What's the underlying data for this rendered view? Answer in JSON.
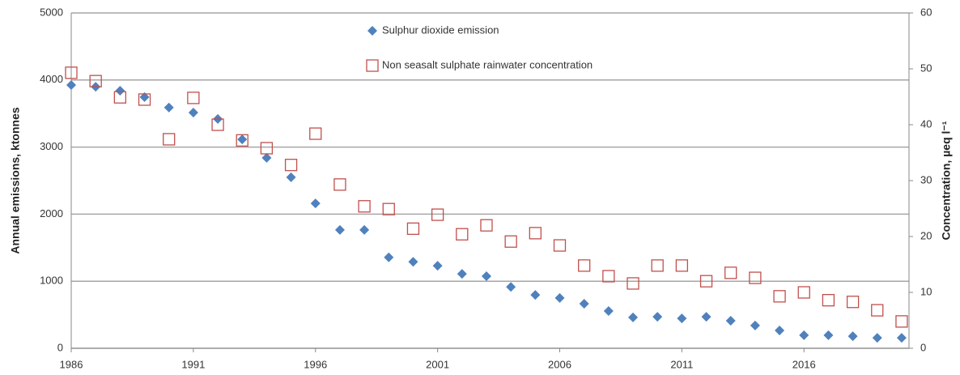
{
  "chart_data": {
    "type": "scatter",
    "y_label": "Annual emissions, ktonnes",
    "y2_label": "Concentration, µeq l⁻¹",
    "x": [
      1986,
      1987,
      1988,
      1989,
      1990,
      1991,
      1992,
      1993,
      1994,
      1995,
      1996,
      1997,
      1998,
      1999,
      2000,
      2001,
      2002,
      2003,
      2004,
      2005,
      2006,
      2007,
      2008,
      2009,
      2010,
      2011,
      2012,
      2013,
      2014,
      2015,
      2016,
      2017,
      2018,
      2019,
      2020
    ],
    "series": [
      {
        "name": "Sulphur dioxide emission",
        "color": "#4f81bd",
        "marker": "diamond",
        "values": [
          3925,
          3900,
          3840,
          3745,
          3590,
          3515,
          3420,
          3115,
          2840,
          2550,
          2160,
          1765,
          1765,
          1355,
          1290,
          1230,
          1110,
          1075,
          915,
          795,
          750,
          665,
          555,
          460,
          470,
          445,
          470,
          410,
          340,
          265,
          195,
          195,
          180,
          155,
          155
        ]
      },
      {
        "name": "Non seasalt sulphate rainwater concentration",
        "color": "#c0504d",
        "marker": "open-square",
        "axis": "y2",
        "values": [
          49.3,
          47.8,
          44.9,
          44.5,
          37.4,
          44.8,
          40.0,
          37.2,
          35.8,
          32.8,
          38.4,
          29.3,
          25.4,
          24.9,
          21.4,
          23.9,
          20.4,
          22.0,
          19.1,
          20.6,
          18.4,
          14.8,
          12.9,
          11.6,
          14.8,
          14.8,
          12.0,
          13.5,
          12.6,
          9.3,
          10.0,
          8.6,
          8.3,
          6.8,
          4.8
        ]
      }
    ],
    "xlim": [
      1986,
      2020.3
    ],
    "xticks": [
      1986,
      1991,
      1996,
      2001,
      2006,
      2011,
      2016
    ],
    "ylim": [
      0,
      5000
    ],
    "yticks": [
      0,
      1000,
      2000,
      3000,
      4000,
      5000
    ],
    "y2lim": [
      0,
      60
    ],
    "y2ticks": [
      0,
      10,
      20,
      30,
      40,
      50,
      60
    ],
    "grid": true,
    "legend": "upper center"
  }
}
